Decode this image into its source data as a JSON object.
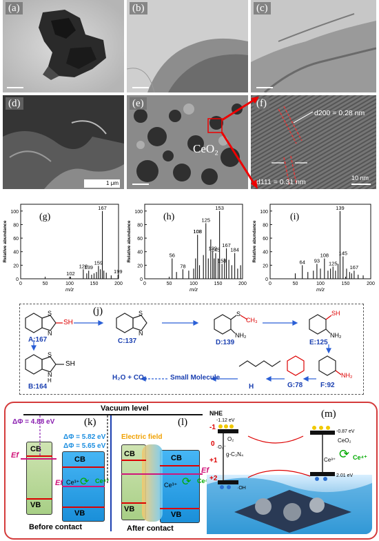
{
  "panels": {
    "a": "(a)",
    "b": "(b)",
    "c": "(c)",
    "d": "(d)",
    "e": "(e)",
    "f": "(f)",
    "g": "(g)",
    "h": "(h)",
    "i": "(i)",
    "j": "(j)",
    "k": "(k)",
    "l": "(l)",
    "m": "(m)"
  },
  "tem": {
    "scale_d": "1 μm",
    "ceo2": "CeO₂",
    "d200": "d200 = 0.28 nm",
    "d111": "d111 = 0.31 nm",
    "scale_f": "10 nm"
  },
  "ms_axes": {
    "ylabel": "Relative abundance",
    "xlabel": "m/z"
  },
  "chart_data": [
    {
      "type": "bar",
      "name": "g",
      "xlim": [
        0,
        200
      ],
      "ylim": [
        0,
        110
      ],
      "xticks": [
        0,
        50,
        100,
        150,
        200
      ],
      "yticks": [
        0,
        20,
        40,
        60,
        80,
        100
      ],
      "peaks": [
        [
          102,
          3
        ],
        [
          128,
          14
        ],
        [
          135,
          8
        ],
        [
          139,
          12
        ],
        [
          145,
          6
        ],
        [
          150,
          8
        ],
        [
          155,
          10
        ],
        [
          159,
          19
        ],
        [
          163,
          14
        ],
        [
          167,
          100
        ],
        [
          170,
          12
        ],
        [
          175,
          9
        ],
        [
          185,
          5
        ],
        [
          199,
          6
        ]
      ],
      "labels": [
        [
          102,
          "102"
        ],
        [
          128,
          "128"
        ],
        [
          139,
          "139"
        ],
        [
          159,
          "159"
        ],
        [
          167,
          "167"
        ],
        [
          199,
          "199"
        ]
      ]
    },
    {
      "type": "bar",
      "name": "h",
      "xlim": [
        0,
        200
      ],
      "ylim": [
        0,
        110
      ],
      "xticks": [
        0,
        50,
        100,
        150,
        200
      ],
      "yticks": [
        0,
        20,
        40,
        60,
        80,
        100
      ],
      "peaks": [
        [
          56,
          30
        ],
        [
          65,
          10
        ],
        [
          78,
          14
        ],
        [
          90,
          12
        ],
        [
          100,
          15
        ],
        [
          104,
          30
        ],
        [
          108,
          65
        ],
        [
          112,
          20
        ],
        [
          120,
          35
        ],
        [
          125,
          82
        ],
        [
          130,
          30
        ],
        [
          135,
          58
        ],
        [
          139,
          40
        ],
        [
          142,
          30
        ],
        [
          145,
          38
        ],
        [
          150,
          30
        ],
        [
          153,
          100
        ],
        [
          158,
          22
        ],
        [
          163,
          30
        ],
        [
          167,
          45
        ],
        [
          172,
          28
        ],
        [
          178,
          20
        ],
        [
          184,
          38
        ],
        [
          190,
          15
        ],
        [
          196,
          20
        ]
      ],
      "labels": [
        [
          56,
          "56"
        ],
        [
          78,
          "78"
        ],
        [
          108,
          "108"
        ],
        [
          108,
          "108"
        ],
        [
          125,
          "125"
        ],
        [
          139,
          "139"
        ],
        [
          145,
          "145"
        ],
        [
          153,
          "153"
        ],
        [
          158,
          "158"
        ],
        [
          167,
          "167"
        ],
        [
          184,
          "184"
        ]
      ]
    },
    {
      "type": "bar",
      "name": "i",
      "xlim": [
        0,
        200
      ],
      "ylim": [
        0,
        110
      ],
      "xticks": [
        0,
        50,
        100,
        150,
        200
      ],
      "yticks": [
        0,
        20,
        40,
        60,
        80,
        100
      ],
      "peaks": [
        [
          50,
          8
        ],
        [
          64,
          20
        ],
        [
          75,
          10
        ],
        [
          86,
          12
        ],
        [
          93,
          22
        ],
        [
          100,
          15
        ],
        [
          108,
          30
        ],
        [
          115,
          12
        ],
        [
          120,
          15
        ],
        [
          125,
          18
        ],
        [
          130,
          12
        ],
        [
          135,
          22
        ],
        [
          139,
          100
        ],
        [
          145,
          33
        ],
        [
          152,
          15
        ],
        [
          158,
          10
        ],
        [
          162,
          8
        ],
        [
          167,
          12
        ],
        [
          175,
          6
        ],
        [
          185,
          5
        ]
      ],
      "labels": [
        [
          64,
          "64"
        ],
        [
          93,
          "93"
        ],
        [
          108,
          "108"
        ],
        [
          125,
          "125"
        ],
        [
          139,
          "139"
        ],
        [
          145,
          "145"
        ],
        [
          167,
          "167"
        ]
      ]
    }
  ],
  "pathway": {
    "A": "A:167",
    "C": "C:137",
    "D": "D:139",
    "E": "E:125",
    "B": "B:164",
    "H": "H",
    "G": "G:78",
    "F": "F:92",
    "small": "Small Molecule",
    "products": "H₂O + CO₂",
    "SH": "SH",
    "S": "S",
    "N": "N",
    "NH2": "NH₂",
    "CH3": "CH₃",
    "SH2": "— SH"
  },
  "energy": {
    "vacuum": "Vacuum level",
    "phi1": "ΔΦ = 4.88 eV",
    "phi2": "ΔΦ = 5.82 eV",
    "phi3": "ΔΦ = 5.65 eV",
    "cb": "CB",
    "vb": "VB",
    "ef": "Ef",
    "ce3": "Ce³⁺",
    "ce4": "Ce⁴⁺",
    "efield": "Electric field",
    "before": "Before contact",
    "after": "After contact"
  },
  "schematic": {
    "nhe": "NHE",
    "ym1": "-1",
    "y0": "0",
    "y1": "+1",
    "y2": "+2",
    "gcn": "g-C₃N₄",
    "ceo2": "CeO₂",
    "v1": "-1.12 eV",
    "v2": "-0.87 eV",
    "v3": "2.01 eV",
    "o2": "O₂",
    "o2r": "·O₂⁻",
    "oh": "·OH",
    "ce3": "Ce³⁺",
    "ce4": "Ce⁴⁺",
    "e": "e⁻",
    "h": "h⁺"
  }
}
